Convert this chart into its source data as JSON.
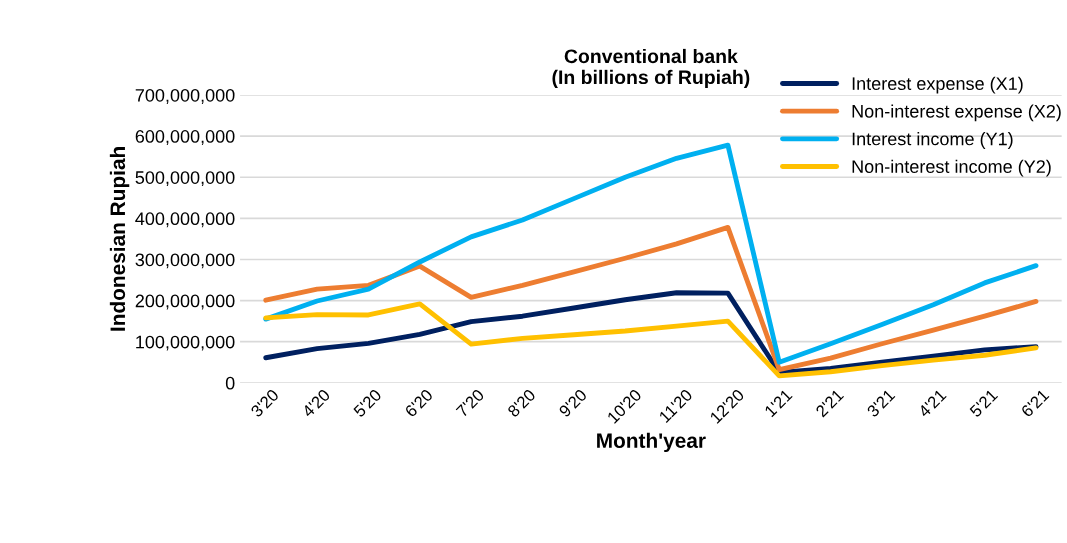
{
  "chart_data": {
    "type": "line",
    "title": "Conventional bank\n(In billions of Rupiah)",
    "xlabel": "Month'year",
    "ylabel": "Indonesian Rupiah",
    "categories": [
      "3'20",
      "4'20",
      "5'20",
      "6'20",
      "7'20",
      "8'20",
      "9'20",
      "10'20",
      "11'20",
      "12'20",
      "1'21",
      "2'21",
      "3'21",
      "4'21",
      "5'21",
      "6'21"
    ],
    "series": [
      {
        "name": "Interest expense (X1)",
        "color": "#002060",
        "values": [
          61000000,
          83000000,
          96000000,
          118000000,
          149000000,
          162000000,
          182000000,
          202000000,
          219000000,
          218000000,
          25000000,
          35000000,
          50000000,
          65000000,
          80000000,
          88000000
        ]
      },
      {
        "name": "Non-interest expense (X2)",
        "color": "#ed7d31",
        "values": [
          201000000,
          228000000,
          237000000,
          284000000,
          208000000,
          237000000,
          270000000,
          303000000,
          338000000,
          378000000,
          32000000,
          60000000,
          95000000,
          128000000,
          162000000,
          198000000
        ]
      },
      {
        "name": "Interest income (Y1)",
        "color": "#00b0f0",
        "values": [
          155000000,
          199000000,
          228000000,
          294000000,
          355000000,
          396000000,
          448000000,
          500000000,
          546000000,
          578000000,
          50000000,
          95000000,
          142000000,
          190000000,
          243000000,
          285000000
        ]
      },
      {
        "name": "Non-interest income (Y2)",
        "color": "#ffc000",
        "values": [
          158000000,
          166000000,
          165000000,
          192000000,
          94000000,
          108000000,
          117000000,
          126000000,
          138000000,
          150000000,
          17000000,
          27000000,
          42000000,
          55000000,
          67000000,
          85000000
        ]
      }
    ],
    "ylim": [
      0,
      700000000
    ],
    "yticks": [
      {
        "value": 0,
        "label": "0"
      },
      {
        "value": 100000000,
        "label": "100,000,000"
      },
      {
        "value": 200000000,
        "label": "200,000,000"
      },
      {
        "value": 300000000,
        "label": "300,000,000"
      },
      {
        "value": 400000000,
        "label": "400,000,000"
      },
      {
        "value": 500000000,
        "label": "500,000,000"
      },
      {
        "value": 600000000,
        "label": "600,000,000"
      },
      {
        "value": 700000000,
        "label": "700,000,000"
      }
    ],
    "grid": "y",
    "legend": "top right",
    "marker": "none",
    "line_style": "solid"
  }
}
